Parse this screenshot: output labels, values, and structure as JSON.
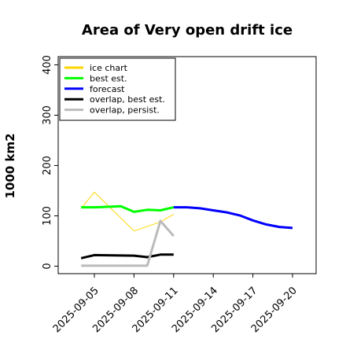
{
  "chart_data": {
    "type": "line",
    "title": "Area of Very open drift ice",
    "ylabel": "1000 km2",
    "xlabel": "",
    "ylim": [
      -5,
      410
    ],
    "y_ticks": [
      0,
      100,
      200,
      300,
      400
    ],
    "x_ticks": [
      "2025-09-05",
      "2025-09-08",
      "2025-09-11",
      "2025-09-14",
      "2025-09-17",
      "2025-09-20"
    ],
    "x_tick_colors": [
      "#000000",
      "#000000",
      "#228b22",
      "#000000",
      "#000000",
      "#000000"
    ],
    "legend_position": "top-left",
    "grid": false,
    "series": [
      {
        "name": "ice chart",
        "color": "#ffd700",
        "width": 1,
        "x": [
          "2025-09-04",
          "2025-09-05",
          "2025-09-08",
          "2025-09-10",
          "2025-09-11"
        ],
        "y": [
          115,
          147,
          70,
          88,
          103
        ]
      },
      {
        "name": "best est.",
        "color": "#00ff00",
        "width": 3,
        "x": [
          "2025-09-04",
          "2025-09-05",
          "2025-09-06",
          "2025-09-07",
          "2025-09-08",
          "2025-09-09",
          "2025-09-10",
          "2025-09-11"
        ],
        "y": [
          117,
          117,
          118,
          119,
          108,
          112,
          111,
          117
        ]
      },
      {
        "name": "forecast",
        "color": "#0000ff",
        "width": 3,
        "x": [
          "2025-09-11",
          "2025-09-12",
          "2025-09-13",
          "2025-09-14",
          "2025-09-15",
          "2025-09-16",
          "2025-09-17",
          "2025-09-18",
          "2025-09-19",
          "2025-09-20"
        ],
        "y": [
          117,
          117,
          115,
          111,
          107,
          101,
          91,
          83,
          78,
          76
        ]
      },
      {
        "name": "overlap, best est.",
        "color": "#000000",
        "width": 3,
        "x": [
          "2025-09-04",
          "2025-09-05",
          "2025-09-08",
          "2025-09-09",
          "2025-09-10",
          "2025-09-11"
        ],
        "y": [
          16,
          22,
          21,
          18,
          23,
          23
        ]
      },
      {
        "name": "overlap, persist.",
        "color": "#bbbbbb",
        "width": 3,
        "x": [
          "2025-09-04",
          "2025-09-05",
          "2025-09-08",
          "2025-09-09",
          "2025-09-10",
          "2025-09-11"
        ],
        "y": [
          1,
          1,
          1,
          1,
          90,
          60
        ]
      }
    ]
  }
}
